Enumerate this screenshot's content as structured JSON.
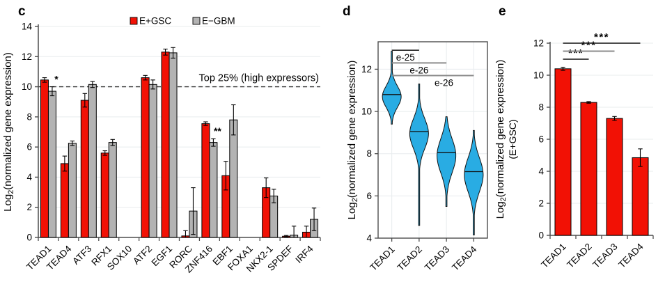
{
  "panels": {
    "c": {
      "letter": "c"
    },
    "d": {
      "letter": "d"
    },
    "e": {
      "letter": "e"
    }
  },
  "colors": {
    "red": "#f21105",
    "gray": "#b3b3b3",
    "blue": "#29ace3",
    "axis": "#4d4d4d",
    "grid": "#e8ecee",
    "dash": "#3a3a3a",
    "sig_gray": "#8c8c8c",
    "black": "#111111"
  },
  "chart_data": [
    {
      "id": "c",
      "type": "bar",
      "ylabel": "Log2(normalized gene expression)",
      "ylim": [
        0,
        14
      ],
      "yticks": [
        0,
        2,
        4,
        6,
        8,
        10,
        12,
        14
      ],
      "grid": true,
      "categories": [
        "TEAD1",
        "TEAD4",
        "ATF3",
        "RFX1",
        "SOX10",
        "ATF2",
        "EGF1",
        "RORC",
        "ZNF416",
        "EBF1",
        "FOXA1",
        "NKX2-1",
        "SPDEF",
        "IRF4"
      ],
      "series": [
        {
          "name": "E+GSC",
          "color": "red",
          "values": [
            10.45,
            4.9,
            9.1,
            5.6,
            0,
            10.6,
            12.3,
            0.1,
            7.55,
            4.1,
            0,
            3.3,
            0.08,
            0.35
          ],
          "errors": [
            0.15,
            0.5,
            0.45,
            0.15,
            0,
            0.15,
            0.2,
            0.35,
            0.12,
            0.95,
            0,
            0.65,
            0.05,
            0.4
          ]
        },
        {
          "name": "E−GBM",
          "color": "gray",
          "values": [
            9.7,
            6.25,
            10.15,
            6.3,
            0,
            10.15,
            12.25,
            1.75,
            6.3,
            7.8,
            0,
            2.75,
            0.15,
            1.2
          ],
          "errors": [
            0.3,
            0.15,
            0.2,
            0.2,
            0,
            0.3,
            0.35,
            1.55,
            0.25,
            1.0,
            0,
            0.45,
            0.6,
            0.75
          ]
        }
      ],
      "reference_line": {
        "y": 10,
        "label": "Top 25% (high expressors)"
      },
      "significance": [
        {
          "category": "TEAD1",
          "series": 1,
          "label": "*"
        },
        {
          "category": "ZNF416",
          "series": 1,
          "label": "**"
        }
      ],
      "legend": {
        "position": "top",
        "entries": [
          {
            "label": "E+GSC",
            "color": "red"
          },
          {
            "label": "E−GBM",
            "color": "gray"
          }
        ]
      }
    },
    {
      "id": "d",
      "type": "violin",
      "ylabel": "Log2(normalized gene expression)",
      "ylim": [
        4,
        13.3
      ],
      "yticks": [
        4,
        6,
        8,
        10,
        12
      ],
      "grid": true,
      "categories": [
        "TEAD1",
        "TEAD2",
        "TEAD3",
        "TEAD4"
      ],
      "violins": [
        {
          "category": "TEAD1",
          "min": 9.4,
          "max": 12.85,
          "median": 10.8,
          "mode": 10.7,
          "spread": 0.5
        },
        {
          "category": "TEAD2",
          "min": 4.6,
          "max": 11.3,
          "median": 9.05,
          "mode": 8.95,
          "spread": 0.7
        },
        {
          "category": "TEAD3",
          "min": 5.5,
          "max": 9.75,
          "median": 8.05,
          "mode": 7.9,
          "spread": 0.8
        },
        {
          "category": "TEAD4",
          "min": 4.15,
          "max": 9.1,
          "median": 7.15,
          "mode": 7.0,
          "spread": 0.8
        }
      ],
      "significance": [
        {
          "from": "TEAD1",
          "to": "TEAD2",
          "y": 12.9,
          "label": "e-25",
          "line": "black"
        },
        {
          "from": "TEAD1",
          "to": "TEAD3",
          "y": 12.3,
          "label": "e-26",
          "line": "gray"
        },
        {
          "from": "TEAD1",
          "to": "TEAD4",
          "y": 11.7,
          "label": "e-26",
          "line": "gray"
        }
      ]
    },
    {
      "id": "e",
      "type": "bar",
      "ylabel": "Log2(normalized gene expression)",
      "ylabel_line2": "(E+GSC)",
      "ylim": [
        0,
        12
      ],
      "yticks": [
        0,
        2,
        4,
        6,
        8,
        10,
        12
      ],
      "grid": true,
      "categories": [
        "TEAD1",
        "TEAD2",
        "TEAD3",
        "TEAD4"
      ],
      "series": [
        {
          "name": "E+GSC",
          "color": "red",
          "values": [
            10.4,
            8.3,
            7.3,
            4.85
          ],
          "errors": [
            0.1,
            0.05,
            0.12,
            0.55
          ]
        }
      ],
      "significance": [
        {
          "from": "TEAD1",
          "to": "TEAD2",
          "y": 11.0,
          "label": "***",
          "line": "black"
        },
        {
          "from": "TEAD1",
          "to": "TEAD3",
          "y": 11.5,
          "label": "***",
          "line": "gray"
        },
        {
          "from": "TEAD1",
          "to": "TEAD4",
          "y": 12.0,
          "label": "***",
          "line": "black"
        }
      ]
    }
  ]
}
